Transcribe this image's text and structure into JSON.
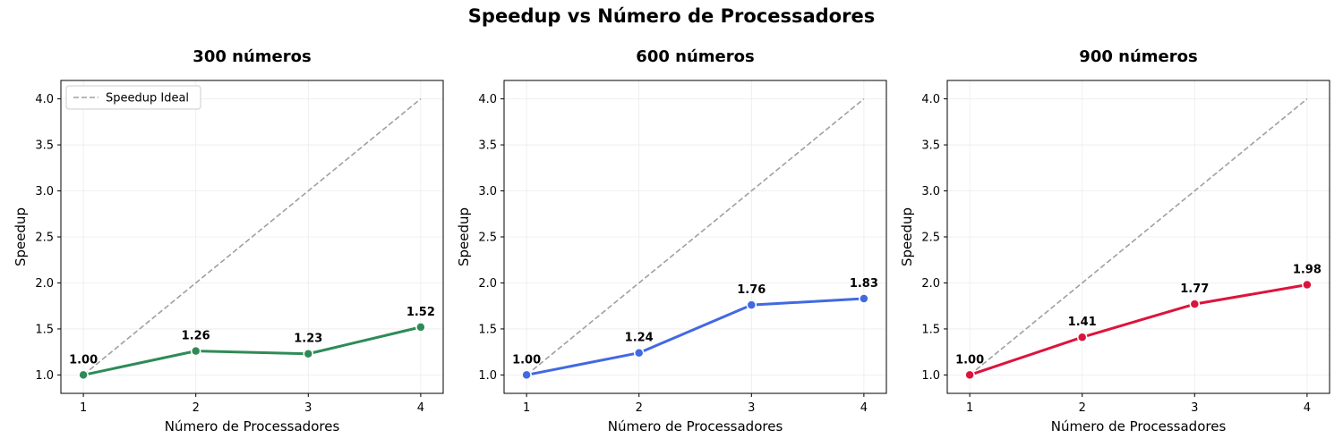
{
  "figure": {
    "suptitle": "Speedup vs Número de Processadores"
  },
  "chart_data": [
    {
      "type": "line",
      "title": "300 números",
      "xlabel": "Número de Processadores",
      "ylabel": "Speedup",
      "x": [
        1,
        2,
        3,
        4
      ],
      "xticks": [
        "1",
        "2",
        "3",
        "4"
      ],
      "yticks": [
        "1.0",
        "1.5",
        "2.0",
        "2.5",
        "3.0",
        "3.5",
        "4.0"
      ],
      "xlim": [
        0.8,
        4.2
      ],
      "ylim": [
        0.8,
        4.2
      ],
      "grid": true,
      "series": [
        {
          "values": [
            1.0,
            1.26,
            1.23,
            1.52
          ],
          "labels": [
            "1.00",
            "1.26",
            "1.23",
            "1.52"
          ],
          "color": "#2e8b57",
          "style": "solid"
        },
        {
          "name": "Speedup Ideal",
          "values": [
            1,
            2,
            3,
            4
          ],
          "color": "#a0a0a0",
          "style": "dashed"
        }
      ],
      "legend": {
        "show": true,
        "placement": "upper-left",
        "entries": [
          "Speedup Ideal"
        ]
      }
    },
    {
      "type": "line",
      "title": "600 números",
      "xlabel": "Número de Processadores",
      "ylabel": "Speedup",
      "x": [
        1,
        2,
        3,
        4
      ],
      "xticks": [
        "1",
        "2",
        "3",
        "4"
      ],
      "yticks": [
        "1.0",
        "1.5",
        "2.0",
        "2.5",
        "3.0",
        "3.5",
        "4.0"
      ],
      "xlim": [
        0.8,
        4.2
      ],
      "ylim": [
        0.8,
        4.2
      ],
      "grid": true,
      "series": [
        {
          "values": [
            1.0,
            1.24,
            1.76,
            1.83
          ],
          "labels": [
            "1.00",
            "1.24",
            "1.76",
            "1.83"
          ],
          "color": "#4169e1",
          "style": "solid"
        },
        {
          "name": "Speedup Ideal",
          "values": [
            1,
            2,
            3,
            4
          ],
          "color": "#a0a0a0",
          "style": "dashed"
        }
      ],
      "legend": {
        "show": false
      }
    },
    {
      "type": "line",
      "title": "900 números",
      "xlabel": "Número de Processadores",
      "ylabel": "Speedup",
      "x": [
        1,
        2,
        3,
        4
      ],
      "xticks": [
        "1",
        "2",
        "3",
        "4"
      ],
      "yticks": [
        "1.0",
        "1.5",
        "2.0",
        "2.5",
        "3.0",
        "3.5",
        "4.0"
      ],
      "xlim": [
        0.8,
        4.2
      ],
      "ylim": [
        0.8,
        4.2
      ],
      "grid": true,
      "series": [
        {
          "values": [
            1.0,
            1.41,
            1.77,
            1.98
          ],
          "labels": [
            "1.00",
            "1.41",
            "1.77",
            "1.98"
          ],
          "color": "#dc143c",
          "style": "solid"
        },
        {
          "name": "Speedup Ideal",
          "values": [
            1,
            2,
            3,
            4
          ],
          "color": "#a0a0a0",
          "style": "dashed"
        }
      ],
      "legend": {
        "show": false
      }
    }
  ]
}
